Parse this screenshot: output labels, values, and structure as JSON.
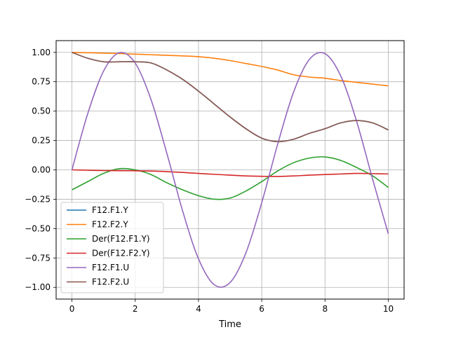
{
  "chart_data": {
    "type": "line",
    "title": "",
    "xlabel": "Time",
    "ylabel": "",
    "xlim": [
      -0.5,
      10.5
    ],
    "ylim": [
      -1.1,
      1.1
    ],
    "grid": true,
    "legend_position": "lower-left",
    "x_ticks": [
      0,
      2,
      4,
      6,
      8,
      10
    ],
    "x_tick_labels": [
      "0",
      "2",
      "4",
      "6",
      "8",
      "10"
    ],
    "y_ticks": [
      1.0,
      0.75,
      0.5,
      0.25,
      0.0,
      -0.25,
      -0.5,
      -0.75,
      -1.0
    ],
    "y_tick_labels": [
      "1.00",
      "0.75",
      "0.50",
      "0.25",
      "0.00",
      "−0.25",
      "−0.50",
      "−0.75",
      "−1.00"
    ],
    "x": [
      0,
      0.5,
      1,
      1.5,
      2,
      2.5,
      3,
      3.5,
      4,
      4.5,
      5,
      5.5,
      6,
      6.5,
      7,
      7.5,
      8,
      8.5,
      9,
      9.5,
      10
    ],
    "series": [
      {
        "name": "F12.F1.Y",
        "color": "#1f77b4",
        "values": [
          1.0,
          0.95,
          0.92,
          0.92,
          0.92,
          0.91,
          0.85,
          0.77,
          0.67,
          0.56,
          0.45,
          0.35,
          0.27,
          0.24,
          0.26,
          0.31,
          0.35,
          0.4,
          0.42,
          0.4,
          0.34
        ]
      },
      {
        "name": "F12.F2.Y",
        "color": "#ff7f0e",
        "values": [
          1.0,
          0.997,
          0.993,
          0.99,
          0.985,
          0.98,
          0.975,
          0.97,
          0.963,
          0.95,
          0.93,
          0.905,
          0.88,
          0.85,
          0.81,
          0.79,
          0.78,
          0.76,
          0.745,
          0.73,
          0.715
        ]
      },
      {
        "name": "Der(F12.F1.Y)",
        "color": "#2ca02c",
        "values": [
          -0.17,
          -0.1,
          -0.03,
          0.01,
          0.0,
          -0.04,
          -0.11,
          -0.17,
          -0.22,
          -0.25,
          -0.24,
          -0.18,
          -0.1,
          -0.01,
          0.06,
          0.1,
          0.11,
          0.08,
          0.02,
          -0.05,
          -0.15
        ]
      },
      {
        "name": "Der(F12.F2.Y)",
        "color": "#d62728",
        "values": [
          0.0,
          -0.003,
          -0.006,
          -0.007,
          -0.008,
          -0.01,
          -0.015,
          -0.022,
          -0.03,
          -0.038,
          -0.045,
          -0.052,
          -0.055,
          -0.056,
          -0.052,
          -0.045,
          -0.04,
          -0.035,
          -0.03,
          -0.032,
          -0.035
        ]
      },
      {
        "name": "F12.F1.U",
        "color": "#9467bd",
        "values": [
          0.0,
          0.479,
          0.841,
          0.997,
          0.909,
          0.598,
          0.141,
          -0.351,
          -0.757,
          -0.978,
          -0.959,
          -0.706,
          -0.279,
          0.215,
          0.657,
          0.938,
          0.989,
          0.798,
          0.412,
          -0.075,
          -0.544
        ]
      },
      {
        "name": "F12.F2.U",
        "color": "#8c564b",
        "values": [
          1.0,
          0.95,
          0.92,
          0.92,
          0.92,
          0.91,
          0.85,
          0.77,
          0.67,
          0.56,
          0.45,
          0.35,
          0.27,
          0.24,
          0.26,
          0.31,
          0.35,
          0.4,
          0.42,
          0.4,
          0.34
        ]
      }
    ]
  }
}
